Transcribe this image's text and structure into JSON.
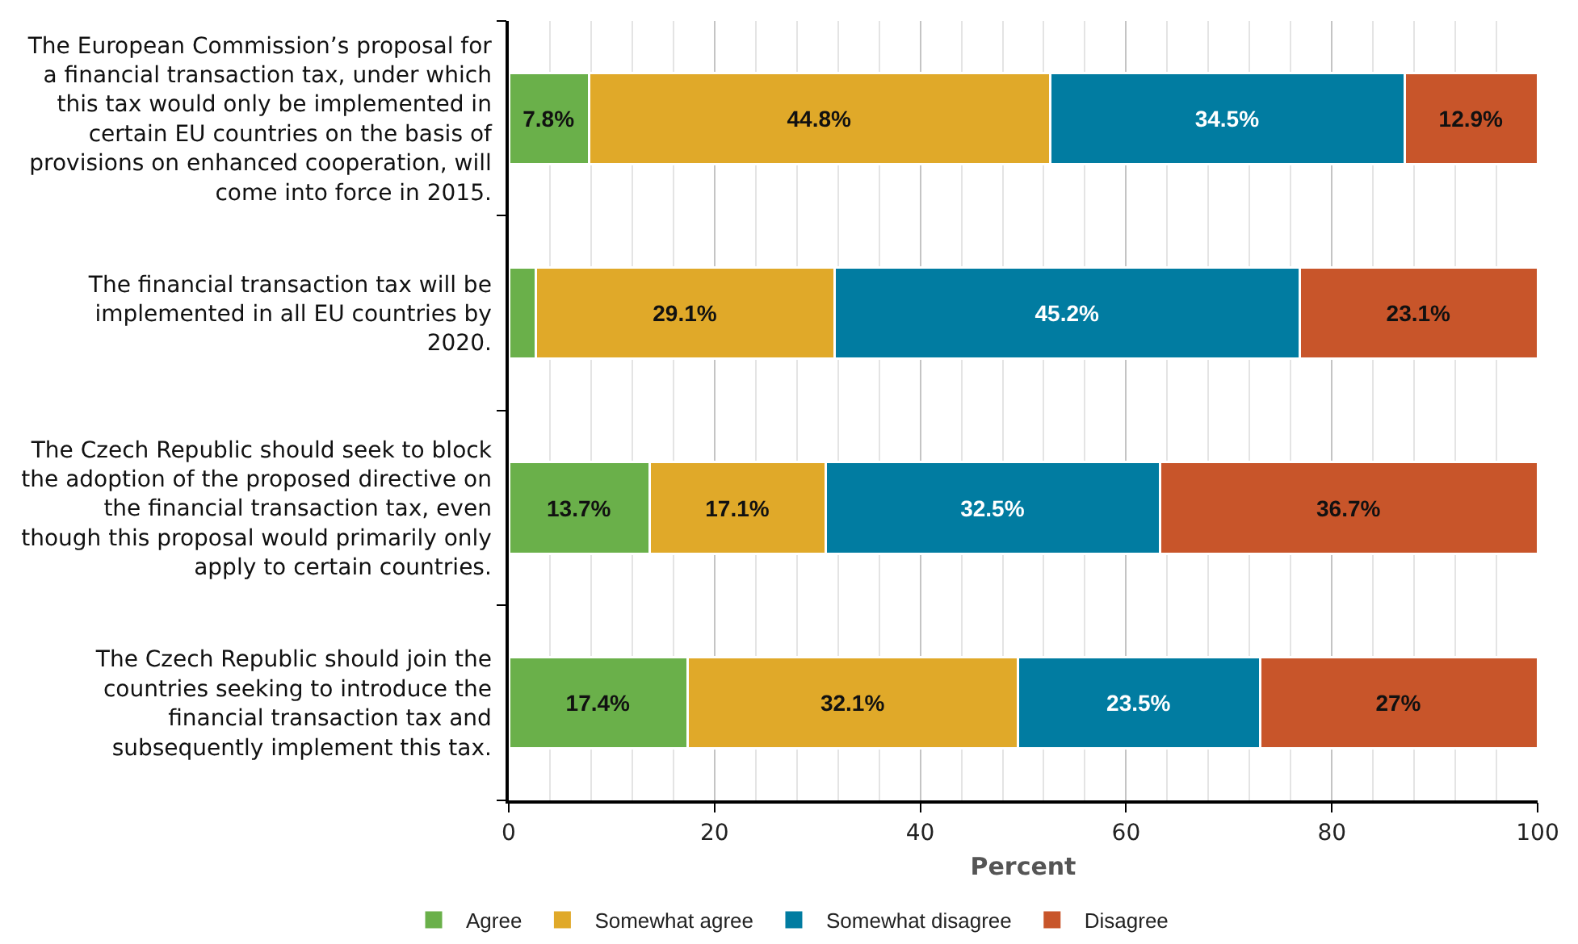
{
  "chart_data": {
    "type": "bar",
    "orientation": "horizontal",
    "stacked": true,
    "categories": [
      "The European Commission’s proposal for a financial transaction tax, under which this tax would only be implemented in certain EU countries on the basis of provisions on enhanced cooperation, will come into force in 2015.",
      "The financial transaction tax will be implemented in all EU countries by 2020.",
      "The Czech Republic should seek to block the adoption of the proposed directive on the financial transaction tax, even though this proposal would primarily only apply to certain countries.",
      "The Czech Republic should join the countries seeking to introduce the financial transaction tax and subsequently implement this tax."
    ],
    "series": [
      {
        "name": "Agree",
        "color": "#6ab04a",
        "values": [
          7.8,
          2.6,
          13.7,
          17.4
        ],
        "value_labels": [
          "7.8%",
          null,
          "13.7%",
          "17.4%"
        ]
      },
      {
        "name": "Somewhat agree",
        "color": "#e0a929",
        "values": [
          44.8,
          29.1,
          17.1,
          32.1
        ],
        "value_labels": [
          "44.8%",
          "29.1%",
          "17.1%",
          "32.1%"
        ]
      },
      {
        "name": "Somewhat disagree",
        "color": "#017ca1",
        "values": [
          34.5,
          45.2,
          32.5,
          23.5
        ],
        "value_labels": [
          "34.5%",
          "45.2%",
          "32.5%",
          "23.5%"
        ]
      },
      {
        "name": "Disagree",
        "color": "#c8552a",
        "values": [
          12.9,
          23.1,
          36.7,
          27
        ],
        "value_labels": [
          "12.9%",
          "23.1%",
          "36.7%",
          "27%"
        ]
      }
    ],
    "xlabel": "Percent",
    "xlim": [
      0,
      100
    ],
    "xticks": [
      0,
      {
        "value": 4,
        "label": null
      },
      {
        "value": 8,
        "label": null
      },
      {
        "value": 12,
        "label": null
      },
      {
        "value": 16,
        "label": null
      },
      20,
      {
        "value": 24,
        "label": null
      },
      {
        "value": 28,
        "label": null
      },
      {
        "value": 32,
        "label": null
      },
      {
        "value": 36,
        "label": null
      },
      40,
      {
        "value": 44,
        "label": null
      },
      {
        "value": 48,
        "label": null
      },
      {
        "value": 52,
        "label": null
      },
      {
        "value": 56,
        "label": null
      },
      60,
      {
        "value": 64,
        "label": null
      },
      {
        "value": 68,
        "label": null
      },
      {
        "value": 72,
        "label": null
      },
      {
        "value": 76,
        "label": null
      },
      80,
      {
        "value": 84,
        "label": null
      },
      {
        "value": 88,
        "label": null
      },
      {
        "value": 92,
        "label": null
      },
      {
        "value": 96,
        "label": null
      },
      100
    ],
    "grid": "x",
    "legend": "bottom"
  }
}
